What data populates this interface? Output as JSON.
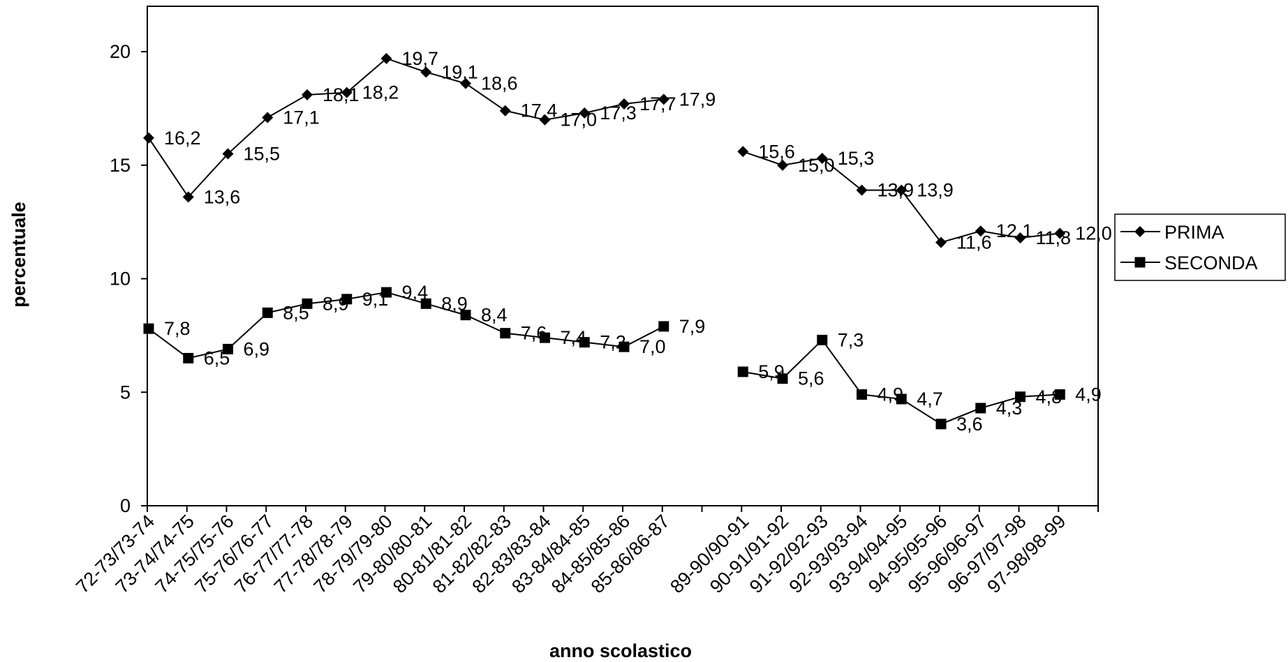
{
  "chart_data": {
    "type": "line",
    "title": "",
    "xlabel": "anno scolastico",
    "ylabel": "percentuale",
    "ylim": [
      0,
      22
    ],
    "yticks": [
      "0",
      "5",
      "10",
      "15",
      "20"
    ],
    "grid": false,
    "legend_position": "right",
    "categories": [
      "72-73/73-74",
      "73-74/74-75",
      "74-75/75-76",
      "75-76/76-77",
      "76-77/77-78",
      "77-78/78-79",
      "78-79/79-80",
      "79-80/80-81",
      "80-81/81-82",
      "81-82/82-83",
      "82-83/83-84",
      "83-84/84-85",
      "84-85/85-86",
      "85-86/86-87",
      "",
      "89-90/90-91",
      "90-91/91-92",
      "91-92/92-93",
      "92-93/93-94",
      "93-94/94-95",
      "94-95/95-96",
      "95-96/96-97",
      "96-97/97-98",
      "97-98/98-99"
    ],
    "series": [
      {
        "name": "PRIMA",
        "marker": "diamond",
        "values": [
          16.2,
          13.6,
          15.5,
          17.1,
          18.1,
          18.2,
          19.7,
          19.1,
          18.6,
          17.4,
          17.0,
          17.3,
          17.7,
          17.9,
          null,
          15.6,
          15.0,
          15.3,
          13.9,
          13.9,
          11.6,
          12.1,
          11.8,
          12.0
        ],
        "labels": [
          "16,2",
          "13,6",
          "15,5",
          "17,1",
          "18,1",
          "18,2",
          "19,7",
          "19,1",
          "18,6",
          "17,4",
          "17,0",
          "17,3",
          "17,7",
          "17,9",
          "",
          "15,6",
          "15,0",
          "15,3",
          "13,9",
          "13,9",
          "11,6",
          "12,1",
          "11,8",
          "12,0"
        ]
      },
      {
        "name": "SECONDA",
        "marker": "square",
        "values": [
          7.8,
          6.5,
          6.9,
          8.5,
          8.9,
          9.1,
          9.4,
          8.9,
          8.4,
          7.6,
          7.4,
          7.2,
          7.0,
          7.9,
          null,
          5.9,
          5.6,
          7.3,
          4.9,
          4.7,
          3.6,
          4.3,
          4.8,
          4.9
        ],
        "labels": [
          "7,8",
          "6,5",
          "6,9",
          "8,5",
          "8,9",
          "9,1",
          "9,4",
          "8,9",
          "8,4",
          "7,6",
          "7,4",
          "7,2",
          "7,0",
          "7,9",
          "",
          "5,9",
          "5,6",
          "7,3",
          "4,9",
          "4,7",
          "3,6",
          "4,3",
          "4,8",
          "4,9"
        ]
      }
    ],
    "colors": {
      "line": "#000000",
      "background": "#ffffff"
    }
  }
}
